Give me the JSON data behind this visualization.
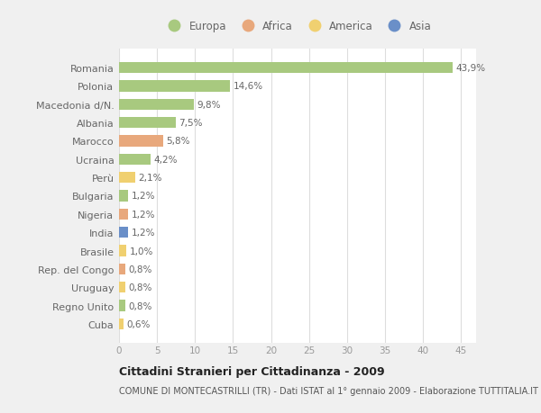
{
  "countries": [
    "Romania",
    "Polonia",
    "Macedonia d/N.",
    "Albania",
    "Marocco",
    "Ucraina",
    "Perù",
    "Bulgaria",
    "Nigeria",
    "India",
    "Brasile",
    "Rep. del Congo",
    "Uruguay",
    "Regno Unito",
    "Cuba"
  ],
  "values": [
    43.9,
    14.6,
    9.8,
    7.5,
    5.8,
    4.2,
    2.1,
    1.2,
    1.2,
    1.2,
    1.0,
    0.8,
    0.8,
    0.8,
    0.6
  ],
  "labels": [
    "43,9%",
    "14,6%",
    "9,8%",
    "7,5%",
    "5,8%",
    "4,2%",
    "2,1%",
    "1,2%",
    "1,2%",
    "1,2%",
    "1,0%",
    "0,8%",
    "0,8%",
    "0,8%",
    "0,6%"
  ],
  "continents": [
    "Europa",
    "Europa",
    "Europa",
    "Europa",
    "Africa",
    "Europa",
    "America",
    "Europa",
    "Africa",
    "Asia",
    "America",
    "Africa",
    "America",
    "Europa",
    "America"
  ],
  "colors": {
    "Europa": "#a8c97f",
    "Africa": "#e8a87c",
    "America": "#f0d070",
    "Asia": "#6a8fc8"
  },
  "legend_order": [
    "Europa",
    "Africa",
    "America",
    "Asia"
  ],
  "legend_colors": [
    "#a8c97f",
    "#e8a87c",
    "#f0d070",
    "#6a8fc8"
  ],
  "xlim": [
    0,
    47
  ],
  "xticks": [
    0,
    5,
    10,
    15,
    20,
    25,
    30,
    35,
    40,
    45
  ],
  "title": "Cittadini Stranieri per Cittadinanza - 2009",
  "subtitle": "COMUNE DI MONTECASTRILLI (TR) - Dati ISTAT al 1° gennaio 2009 - Elaborazione TUTTITALIA.IT",
  "bg_color": "#f0f0f0",
  "plot_bg_color": "#ffffff",
  "grid_color": "#dddddd",
  "label_color": "#666666",
  "tick_color": "#999999"
}
